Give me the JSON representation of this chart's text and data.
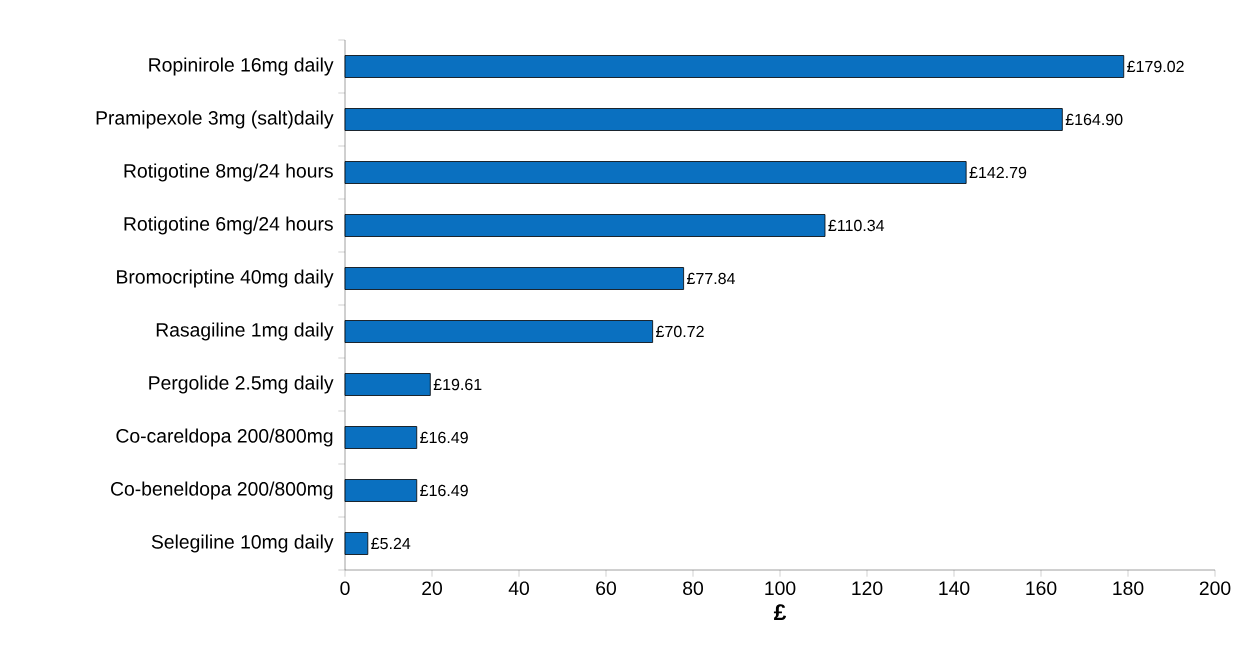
{
  "chart_data": {
    "type": "bar",
    "orientation": "horizontal",
    "xlabel": "£",
    "categories": [
      "Ropinirole 16mg daily",
      "Pramipexole 3mg (salt)daily",
      "Rotigotine 8mg/24 hours",
      "Rotigotine 6mg/24 hours",
      "Bromocriptine 40mg daily",
      "Rasagiline 1mg daily",
      "Pergolide 2.5mg daily",
      "Co-careldopa 200/800mg",
      "Co-beneldopa 200/800mg",
      "Selegiline 10mg daily"
    ],
    "values": [
      179.02,
      164.9,
      142.79,
      110.34,
      77.84,
      70.72,
      19.61,
      16.49,
      16.49,
      5.24
    ],
    "value_labels": [
      "£179.02",
      "£164.90",
      "£142.79",
      "£110.34",
      "£77.84",
      "£70.72",
      "£19.61",
      "£16.49",
      "£16.49",
      "£5.24"
    ],
    "color": "#0a70c0",
    "xlim": [
      0,
      200
    ],
    "xticks": [
      0,
      20,
      40,
      60,
      80,
      100,
      120,
      140,
      160,
      180,
      200
    ],
    "grid": false
  }
}
